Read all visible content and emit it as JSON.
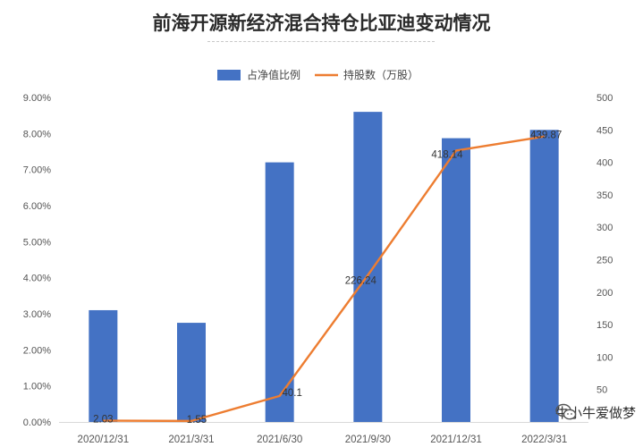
{
  "title": "前海开源新经济混合持仓比亚迪变动情况",
  "watermark": "牛小牛爱做梦",
  "colors": {
    "bar": "#4472c4",
    "line": "#ed7d31",
    "axis_text": "#555555",
    "grid": "#d9d9d9"
  },
  "chart_data": {
    "type": "bar",
    "title": "前海开源新经济混合持仓比亚迪变动情况",
    "categories": [
      "2020/12/31",
      "2021/3/31",
      "2021/6/30",
      "2021/9/30",
      "2021/12/31",
      "2022/3/31"
    ],
    "legend_position": "top",
    "grid": false,
    "series": [
      {
        "name": "占净值比例",
        "type": "bar",
        "axis": "left",
        "values": [
          3.1,
          2.75,
          7.2,
          8.6,
          7.87,
          8.1
        ]
      },
      {
        "name": "持股数（万股）",
        "type": "line",
        "axis": "right",
        "values": [
          2.03,
          1.55,
          40.1,
          226.24,
          418.14,
          439.87
        ],
        "data_labels": [
          "2.03",
          "1.55",
          "40.1",
          "226.24",
          "418.14",
          "439.87"
        ]
      }
    ],
    "y_left": {
      "min": 0,
      "max": 9,
      "ticks": [
        "0.00%",
        "1.00%",
        "2.00%",
        "3.00%",
        "4.00%",
        "5.00%",
        "6.00%",
        "7.00%",
        "8.00%",
        "9.00%"
      ]
    },
    "y_right": {
      "min": 0,
      "max": 500,
      "ticks": [
        "",
        "50",
        "100",
        "150",
        "200",
        "250",
        "300",
        "350",
        "400",
        "450",
        "500"
      ]
    }
  }
}
